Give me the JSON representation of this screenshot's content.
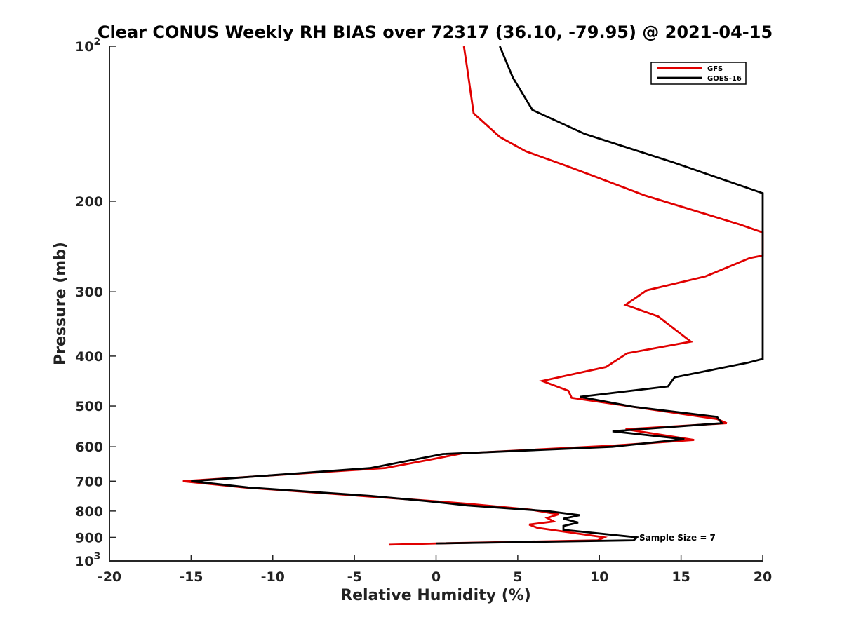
{
  "chart_data": {
    "type": "line",
    "title": "Clear CONUS Weekly RH BIAS over 72317 (36.10, -79.95) @ 2021-04-15",
    "xlabel": "Relative Humidity (%)",
    "ylabel": "Pressure (mb)",
    "xlim": [
      -20,
      20
    ],
    "ylim": [
      100,
      1000
    ],
    "y_scale": "log",
    "y_reversed": true,
    "xticks": [
      -20,
      -15,
      -10,
      -5,
      0,
      5,
      10,
      15,
      20
    ],
    "xtick_labels": [
      "-20",
      "-15",
      "-10",
      "-5",
      "0",
      "5",
      "10",
      "15",
      "20"
    ],
    "yticks": [
      100,
      200,
      300,
      400,
      500,
      600,
      700,
      800,
      900,
      1000
    ],
    "ytick_labels": [
      {
        "base": "10",
        "exp": "2"
      },
      {
        "base": "200",
        "exp": ""
      },
      {
        "base": "300",
        "exp": ""
      },
      {
        "base": "400",
        "exp": ""
      },
      {
        "base": "500",
        "exp": ""
      },
      {
        "base": "600",
        "exp": ""
      },
      {
        "base": "700",
        "exp": ""
      },
      {
        "base": "800",
        "exp": ""
      },
      {
        "base": "900",
        "exp": ""
      },
      {
        "base": "10",
        "exp": "3"
      }
    ],
    "grid": false,
    "legend_position": "top-right",
    "annotation": "Sample Size = 7",
    "series": [
      {
        "name": "GFS",
        "color": "#e00000",
        "points": [
          [
            1.7,
            100
          ],
          [
            1.9,
            110
          ],
          [
            2.3,
            135
          ],
          [
            3.9,
            150
          ],
          [
            5.5,
            160
          ],
          [
            7.8,
            170
          ],
          [
            9.5,
            178
          ],
          [
            12.8,
            195
          ],
          [
            18.6,
            222
          ],
          [
            20,
            230
          ],
          [
            20,
            255
          ],
          [
            19.2,
            258
          ],
          [
            16.5,
            280
          ],
          [
            12.9,
            298
          ],
          [
            11.6,
            318
          ],
          [
            13.6,
            335
          ],
          [
            15.6,
            375
          ],
          [
            11.7,
            395
          ],
          [
            10.4,
            420
          ],
          [
            6.5,
            447
          ],
          [
            8.1,
            467
          ],
          [
            8.3,
            482
          ],
          [
            17.2,
            530
          ],
          [
            17.8,
            540
          ],
          [
            11.6,
            555
          ],
          [
            15.8,
            582
          ],
          [
            10.8,
            597
          ],
          [
            1.6,
            618
          ],
          [
            -0.3,
            635
          ],
          [
            -3.1,
            660
          ],
          [
            -15.5,
            700
          ],
          [
            -11.7,
            720
          ],
          [
            -4.0,
            750
          ],
          [
            -0.2,
            765
          ],
          [
            2.0,
            775
          ],
          [
            5.8,
            795
          ],
          [
            7.5,
            812
          ],
          [
            6.8,
            825
          ],
          [
            7.2,
            838
          ],
          [
            5.7,
            850
          ],
          [
            6.2,
            862
          ],
          [
            10.3,
            900
          ],
          [
            9.9,
            912
          ],
          [
            0.0,
            925
          ],
          [
            -2.9,
            930
          ]
        ]
      },
      {
        "name": "GOES-16",
        "color": "#000000",
        "points": [
          [
            3.9,
            100
          ],
          [
            4.7,
            115
          ],
          [
            5.9,
            133
          ],
          [
            9.1,
            148
          ],
          [
            14.5,
            168
          ],
          [
            20,
            193
          ],
          [
            20,
            405
          ],
          [
            19.1,
            412
          ],
          [
            14.6,
            440
          ],
          [
            14.2,
            458
          ],
          [
            8.8,
            480
          ],
          [
            12.1,
            502
          ],
          [
            17.2,
            525
          ],
          [
            17.5,
            540
          ],
          [
            10.8,
            560
          ],
          [
            15.2,
            580
          ],
          [
            10.8,
            600
          ],
          [
            0.4,
            620
          ],
          [
            -4.0,
            660
          ],
          [
            -15.0,
            700
          ],
          [
            -11.5,
            720
          ],
          [
            -4.0,
            748
          ],
          [
            -0.6,
            765
          ],
          [
            1.9,
            780
          ],
          [
            6.8,
            800
          ],
          [
            8.8,
            815
          ],
          [
            7.8,
            828
          ],
          [
            8.7,
            842
          ],
          [
            7.8,
            855
          ],
          [
            7.8,
            870
          ],
          [
            12.3,
            900
          ],
          [
            12.1,
            912
          ],
          [
            0.0,
            925
          ]
        ]
      }
    ]
  }
}
